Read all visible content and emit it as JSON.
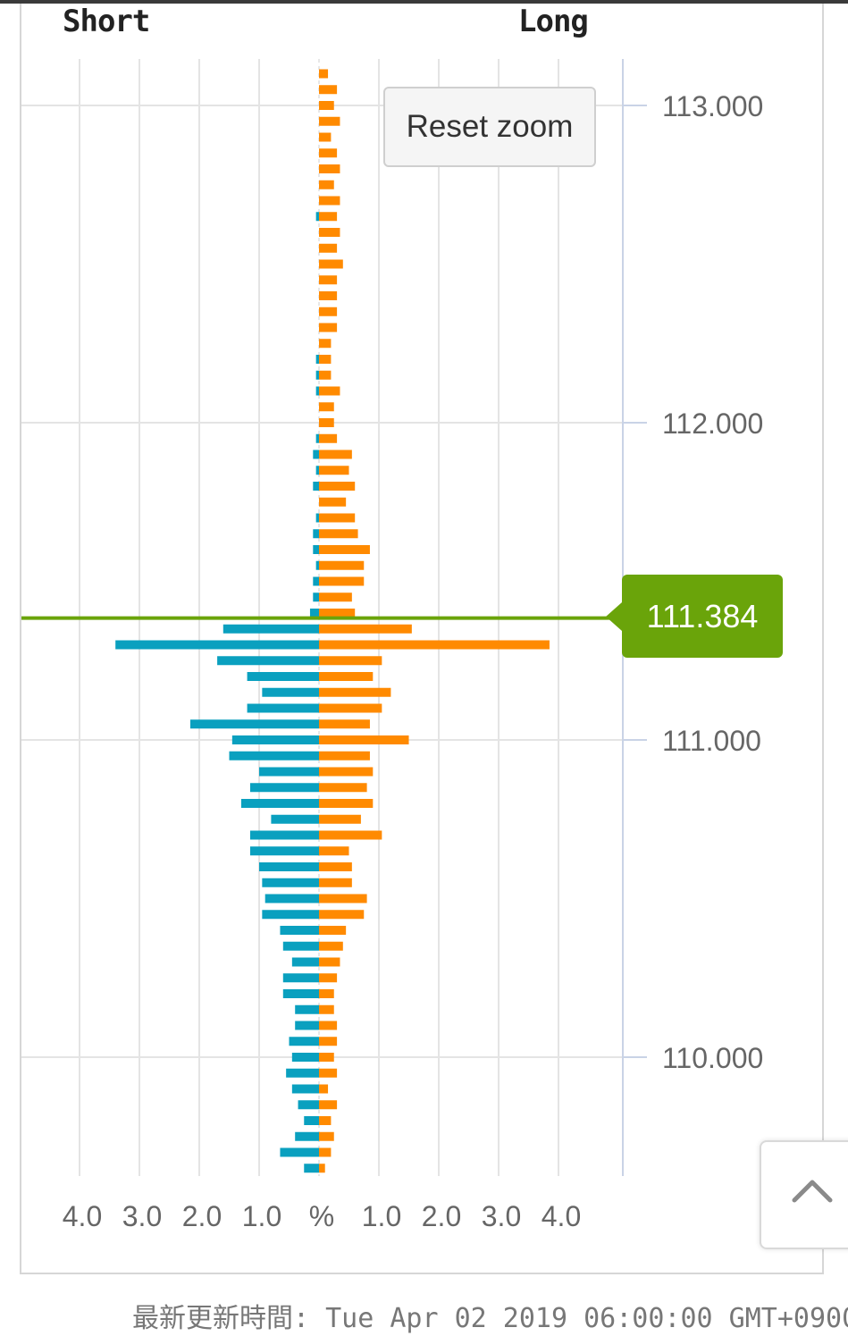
{
  "header": {
    "short_label": "Short",
    "long_label": "Long"
  },
  "buttons": {
    "reset_zoom": "Reset zoom"
  },
  "current_price": {
    "label": "111.384",
    "value": 111.384
  },
  "footer": {
    "updated": "最新更新時間: Tue Apr 02 2019 06:00:00 GMT+0900"
  },
  "colors": {
    "short": "#0aa0bf",
    "long": "#ff8a00",
    "price_line": "#6aa40a",
    "grid": "#e4e4e4",
    "axis": "#c9d3e6"
  },
  "chart_data": {
    "type": "bar",
    "orientation": "horizontal-butterfly",
    "x_tick_labels": [
      "4.0",
      "3.0",
      "2.0",
      "1.0",
      "%",
      "1.0",
      "2.0",
      "3.0",
      "4.0"
    ],
    "y_tick_labels": [
      "113.000",
      "112.000",
      "111.000",
      "110.000"
    ],
    "y_ticks": [
      113.0,
      112.0,
      111.0,
      110.0
    ],
    "ylim": [
      109.65,
      113.2
    ],
    "xlim": [
      -4.5,
      4.5
    ],
    "grid": true,
    "price_step": 0.05,
    "price_start": 113.1,
    "series": [
      {
        "name": "Short",
        "values": [
          0.0,
          0.0,
          0.0,
          0.0,
          0.0,
          0.0,
          0.0,
          0.0,
          0.0,
          0.05,
          0.0,
          0.0,
          0.0,
          0.0,
          0.0,
          0.0,
          0.0,
          0.0,
          0.05,
          0.05,
          0.05,
          0.0,
          0.0,
          0.05,
          0.1,
          0.05,
          0.1,
          0.0,
          0.05,
          0.1,
          0.1,
          0.05,
          0.1,
          0.1,
          0.15,
          1.6,
          3.4,
          1.7,
          1.2,
          0.95,
          1.2,
          2.15,
          1.45,
          1.5,
          1.0,
          1.15,
          1.3,
          0.8,
          1.15,
          1.15,
          1.0,
          0.95,
          0.9,
          0.95,
          0.65,
          0.6,
          0.45,
          0.6,
          0.6,
          0.4,
          0.4,
          0.5,
          0.45,
          0.55,
          0.45,
          0.35,
          0.25,
          0.4,
          0.65,
          0.25
        ]
      },
      {
        "name": "Long",
        "values": [
          0.15,
          0.3,
          0.25,
          0.35,
          0.2,
          0.3,
          0.35,
          0.25,
          0.35,
          0.3,
          0.35,
          0.3,
          0.4,
          0.3,
          0.3,
          0.3,
          0.3,
          0.2,
          0.2,
          0.2,
          0.35,
          0.25,
          0.25,
          0.3,
          0.55,
          0.5,
          0.6,
          0.45,
          0.6,
          0.65,
          0.85,
          0.75,
          0.75,
          0.55,
          0.6,
          1.55,
          3.85,
          1.05,
          0.9,
          1.2,
          1.05,
          0.85,
          1.5,
          0.85,
          0.9,
          0.8,
          0.9,
          0.7,
          1.05,
          0.5,
          0.55,
          0.55,
          0.8,
          0.75,
          0.45,
          0.4,
          0.35,
          0.3,
          0.25,
          0.25,
          0.3,
          0.3,
          0.25,
          0.3,
          0.15,
          0.3,
          0.2,
          0.25,
          0.2,
          0.1
        ]
      }
    ]
  }
}
